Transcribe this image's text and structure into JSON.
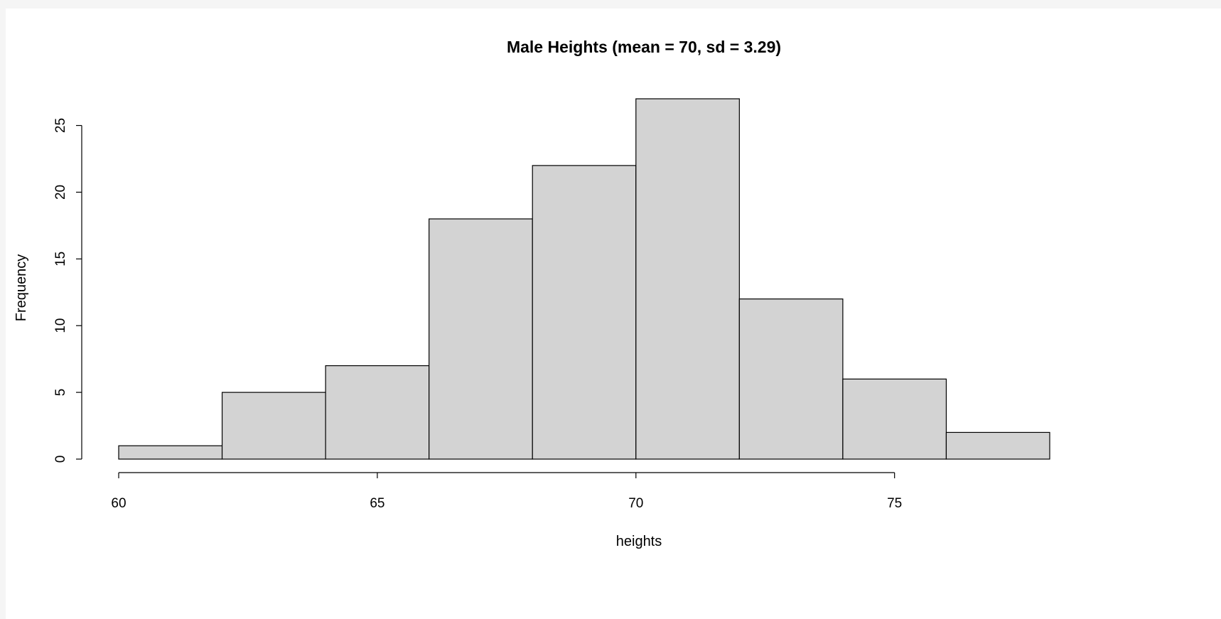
{
  "chart_data": {
    "type": "bar",
    "title": "Male Heights (mean = 70, sd = 3.29)",
    "xlabel": "heights",
    "ylabel": "Frequency",
    "bin_edges": [
      60,
      62,
      64,
      66,
      68,
      70,
      72,
      74,
      76,
      78
    ],
    "values": [
      1,
      5,
      7,
      18,
      22,
      27,
      12,
      6,
      2
    ],
    "xticks": [
      "60",
      "65",
      "70",
      "75"
    ],
    "xtick_values": [
      60,
      65,
      70,
      75
    ],
    "yticks": [
      "0",
      "5",
      "10",
      "15",
      "20",
      "25"
    ],
    "ytick_values": [
      0,
      5,
      10,
      15,
      20,
      25
    ],
    "xlim": [
      60,
      78
    ],
    "ylim": [
      0,
      27
    ],
    "grid": false,
    "bar_color": "#d3d3d3"
  }
}
